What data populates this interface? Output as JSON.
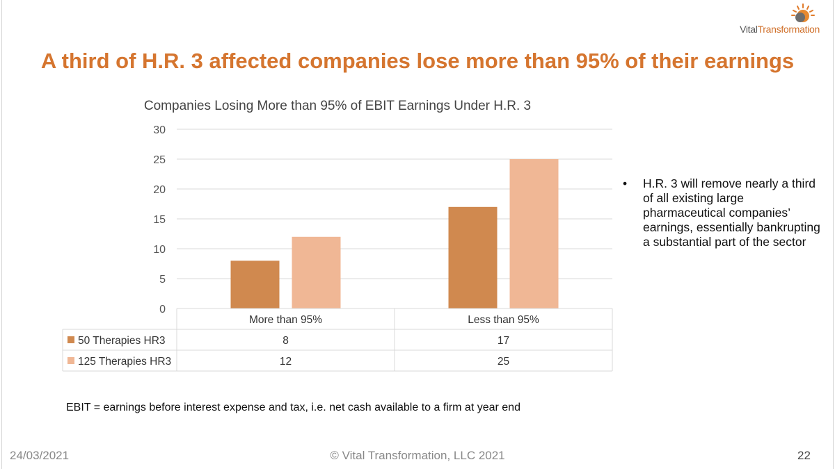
{
  "logo": {
    "word1": "Vital",
    "word2": "Transformation"
  },
  "slide_title": "A third of H.R. 3 affected companies lose more than 95% of their earnings",
  "bullet": "H.R. 3 will remove nearly a third of all existing large pharmaceutical companies’ earnings, essentially bankrupting a substantial part of the sector",
  "bullet_marker": "•",
  "note": "EBIT = earnings before interest expense and tax, i.e. net cash available to a firm at year end",
  "footer": {
    "date": "24/03/2021",
    "copyright": "© Vital Transformation, LLC 2021",
    "page": "22"
  },
  "colors": {
    "accent": "#d5752f",
    "series1": "#d0894f",
    "series2": "#f0b795",
    "grid": "#d9d9d9"
  },
  "chart_data": {
    "type": "bar",
    "title": "Companies Losing More than 95% of EBIT Earnings Under H.R. 3",
    "categories": [
      "More than 95%",
      "Less than 95%"
    ],
    "series": [
      {
        "name": "50 Therapies HR3",
        "values": [
          8,
          17
        ]
      },
      {
        "name": "125 Therapies HR3",
        "values": [
          12,
          25
        ]
      }
    ],
    "ylim": [
      0,
      30
    ],
    "yticks": [
      0,
      5,
      10,
      15,
      20,
      25,
      30
    ],
    "grid": true,
    "legend": "data-table"
  }
}
